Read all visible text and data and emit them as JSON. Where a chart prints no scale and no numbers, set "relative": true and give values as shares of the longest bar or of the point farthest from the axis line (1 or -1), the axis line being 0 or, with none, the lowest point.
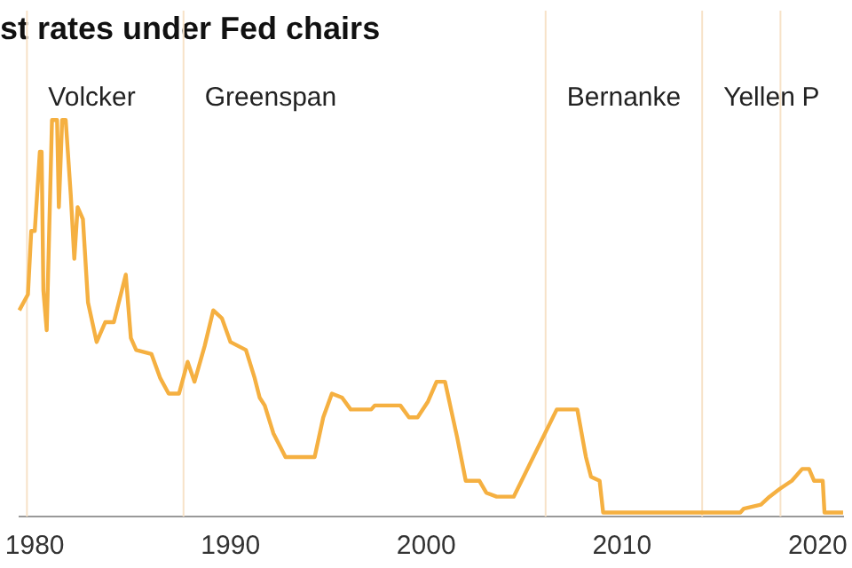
{
  "chart_data": {
    "type": "line",
    "title": "st rates under Fed chairs",
    "relative": true,
    "x": [
      1979.21,
      1979.65,
      1979.82,
      1980.0,
      1980.26,
      1980.35,
      1980.44,
      1980.61,
      1980.88,
      1981.14,
      1981.23,
      1981.4,
      1981.58,
      1981.84,
      1982.02,
      1982.19,
      1982.46,
      1982.72,
      1983.16,
      1983.6,
      1984.04,
      1984.65,
      1984.91,
      1985.18,
      1985.96,
      1986.4,
      1986.84,
      1987.37,
      1987.81,
      1988.16,
      1988.68,
      1989.12,
      1989.56,
      1990.0,
      1990.79,
      1991.23,
      1991.49,
      1991.75,
      1992.19,
      1992.81,
      1994.3,
      1994.74,
      1995.18,
      1995.7,
      1996.14,
      1997.19,
      1997.37,
      1998.68,
      1999.12,
      1999.56,
      2000.09,
      2000.53,
      2000.96,
      2001.58,
      2002.02,
      2002.72,
      2003.07,
      2003.6,
      2004.47,
      2006.67,
      2007.72,
      2008.16,
      2008.42,
      2008.86,
      2009.04,
      2016.05,
      2016.23,
      2017.1,
      2017.54,
      2018.07,
      2018.68,
      2019.21,
      2019.56,
      2019.82,
      2020.26,
      2020.35,
      2021.3
    ],
    "series": [
      {
        "color": "#f5b041",
        "values": [
          0.52,
          0.56,
          0.72,
          0.72,
          0.92,
          0.92,
          0.57,
          0.47,
          1,
          1,
          0.78,
          1,
          1,
          0.81,
          0.65,
          0.78,
          0.75,
          0.54,
          0.44,
          0.49,
          0.49,
          0.61,
          0.45,
          0.42,
          0.41,
          0.35,
          0.31,
          0.31,
          0.39,
          0.34,
          0.43,
          0.52,
          0.5,
          0.44,
          0.42,
          0.35,
          0.3,
          0.28,
          0.21,
          0.15,
          0.15,
          0.25,
          0.31,
          0.3,
          0.27,
          0.27,
          0.28,
          0.28,
          0.25,
          0.25,
          0.29,
          0.34,
          0.34,
          0.2,
          0.09,
          0.09,
          0.06,
          0.05,
          0.05,
          0.27,
          0.27,
          0.15,
          0.1,
          0.09,
          0.01,
          0.01,
          0.02,
          0.03,
          0.05,
          0.07,
          0.09,
          0.12,
          0.12,
          0.09,
          0.09,
          0.01,
          0.01
        ]
      }
    ],
    "xlim": [
      1979.2,
      2021.3
    ],
    "xticks": [
      1980,
      1990,
      2000,
      2010,
      2020
    ],
    "ref_lines": [
      {
        "axis": "x",
        "value": 1979.6,
        "label": "Volcker",
        "color": "#f7e2c8"
      },
      {
        "axis": "x",
        "value": 1987.6,
        "label": "Greenspan",
        "color": "#f7e2c8"
      },
      {
        "axis": "x",
        "value": 2006.1,
        "label": "Bernanke",
        "color": "#f7e2c8"
      },
      {
        "axis": "x",
        "value": 2014.1,
        "label": "Yellen",
        "color": "#f7e2c8"
      },
      {
        "axis": "x",
        "value": 2018.1,
        "label": "P",
        "color": "#f7e2c8"
      }
    ],
    "grid": false,
    "legend": false,
    "marker": "none",
    "line_style": "solid"
  }
}
